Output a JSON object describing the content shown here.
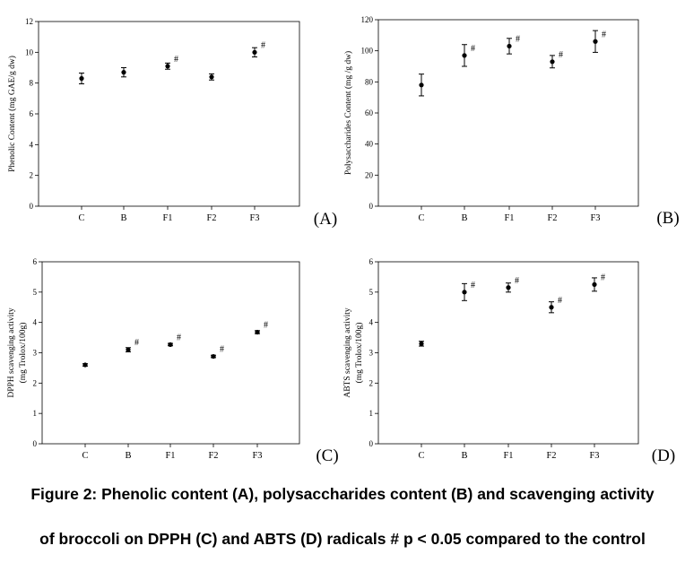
{
  "chart_data": [
    {
      "type": "scatter",
      "panel_label": "(A)",
      "ylabel": "Phenolic Content (mg GAE/g dw)",
      "categories": [
        "C",
        "B",
        "F1",
        "F2",
        "F3"
      ],
      "values": [
        8.3,
        8.7,
        9.1,
        8.4,
        10.0
      ],
      "errors": [
        0.35,
        0.3,
        0.2,
        0.2,
        0.3
      ],
      "significance": [
        "",
        "",
        "#",
        "",
        "#"
      ],
      "ylim": [
        0,
        12
      ],
      "yticks": [
        "0",
        "2",
        "4",
        "6",
        "8",
        "10",
        "12"
      ]
    },
    {
      "type": "scatter",
      "panel_label": "(B)",
      "ylabel": "Polysaccharides Content (mg /g dw)",
      "categories": [
        "C",
        "B",
        "F1",
        "F2",
        "F3"
      ],
      "values": [
        78,
        97,
        103,
        93,
        106
      ],
      "errors": [
        7,
        7,
        5,
        4,
        7
      ],
      "significance": [
        "",
        "#",
        "#",
        "#",
        "#"
      ],
      "ylim": [
        0,
        120
      ],
      "yticks": [
        "0",
        "20",
        "40",
        "60",
        "80",
        "100",
        "120"
      ]
    },
    {
      "type": "scatter",
      "panel_label": "(C)",
      "ylabel": "DPPH scavenging activity",
      "ylabel2": "(mg Trolox/100g)",
      "categories": [
        "C",
        "B",
        "F1",
        "F2",
        "F3"
      ],
      "values": [
        2.6,
        3.1,
        3.27,
        2.88,
        3.68
      ],
      "errors": [
        0.04,
        0.07,
        0.04,
        0.04,
        0.05
      ],
      "significance": [
        "",
        "#",
        "#",
        "#",
        "#"
      ],
      "ylim": [
        0,
        6
      ],
      "yticks": [
        "0",
        "1",
        "2",
        "3",
        "4",
        "5",
        "6"
      ]
    },
    {
      "type": "scatter",
      "panel_label": "(D)",
      "ylabel": "ABTS scavenging activity",
      "ylabel2": "(mg Trolox/100g)",
      "categories": [
        "C",
        "B",
        "F1",
        "F2",
        "F3"
      ],
      "values": [
        3.3,
        5.0,
        5.15,
        4.5,
        5.25
      ],
      "errors": [
        0.08,
        0.28,
        0.15,
        0.18,
        0.22
      ],
      "significance": [
        "",
        "#",
        "#",
        "#",
        "#"
      ],
      "ylim": [
        0,
        6
      ],
      "yticks": [
        "0",
        "1",
        "2",
        "3",
        "4",
        "5",
        "6"
      ]
    }
  ],
  "caption": {
    "line1": "Figure 2: Phenolic content (A), polysaccharides content (B) and scavenging activity",
    "line2": "of broccoli on DPPH (C) and ABTS (D) radicals # p < 0.05 compared to the control"
  }
}
